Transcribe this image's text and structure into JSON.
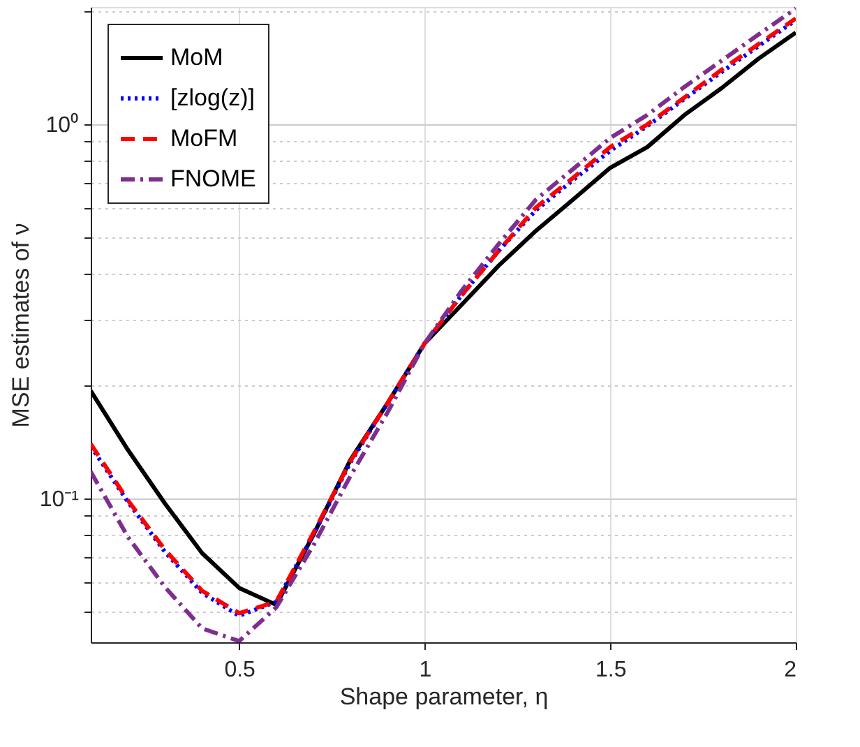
{
  "chart_data": {
    "type": "line",
    "xlabel": "Shape parameter, η",
    "ylabel": "MSE estimates of ν",
    "x": [
      0.1,
      0.2,
      0.3,
      0.4,
      0.5,
      0.6,
      0.7,
      0.8,
      0.9,
      1.0,
      1.1,
      1.2,
      1.3,
      1.4,
      1.5,
      1.6,
      1.7,
      1.8,
      1.9,
      2.0
    ],
    "series": [
      {
        "name": "MoM",
        "color": "#000000",
        "line_style": "solid",
        "values": [
          0.194,
          0.135,
          0.097,
          0.0715,
          0.0577,
          0.052,
          0.08,
          0.127,
          0.18,
          0.26,
          0.33,
          0.42,
          0.52,
          0.63,
          0.766,
          0.87,
          1.06,
          1.25,
          1.5,
          1.76
        ]
      },
      {
        "name": "[zlog(z)]",
        "color": "#0000ff",
        "line_style": "dotted",
        "values": [
          0.138,
          0.098,
          0.072,
          0.056,
          0.0486,
          0.053,
          0.08,
          0.125,
          0.18,
          0.26,
          0.35,
          0.46,
          0.59,
          0.71,
          0.85,
          0.99,
          1.17,
          1.38,
          1.62,
          1.9
        ]
      },
      {
        "name": "MoFM",
        "color": "#ff0000",
        "line_style": "dashed",
        "values": [
          0.14,
          0.099,
          0.073,
          0.0567,
          0.0494,
          0.053,
          0.081,
          0.126,
          0.18,
          0.26,
          0.35,
          0.46,
          0.6,
          0.72,
          0.87,
          1.0,
          1.18,
          1.4,
          1.64,
          1.92
        ]
      },
      {
        "name": "FNOME",
        "color": "#7e2f8e",
        "line_style": "dashdot",
        "values": [
          0.118,
          0.079,
          0.058,
          0.045,
          0.0416,
          0.0512,
          0.075,
          0.115,
          0.17,
          0.26,
          0.36,
          0.48,
          0.63,
          0.76,
          0.92,
          1.06,
          1.26,
          1.48,
          1.74,
          2.04
        ]
      }
    ],
    "log": "y",
    "xlim": [
      0.1,
      2
    ],
    "ylim": [
      0.0413,
      2.06
    ],
    "xticks": [
      0.5,
      1,
      1.5,
      2
    ],
    "yticks": [
      {
        "value": 0.05,
        "label": null
      },
      {
        "value": 0.06,
        "label": null
      },
      {
        "value": 0.07,
        "label": null
      },
      {
        "value": 0.08,
        "label": null
      },
      {
        "value": 0.09,
        "label": null
      },
      {
        "value": 0.1,
        "label": "10⁻¹"
      },
      {
        "value": 0.2,
        "label": null
      },
      {
        "value": 0.3,
        "label": null
      },
      {
        "value": 0.4,
        "label": null
      },
      {
        "value": 0.5,
        "label": null
      },
      {
        "value": 0.6,
        "label": null
      },
      {
        "value": 0.7,
        "label": null
      },
      {
        "value": 0.8,
        "label": null
      },
      {
        "value": 0.9,
        "label": null
      },
      {
        "value": 1,
        "label": "10⁰"
      },
      {
        "value": 2,
        "label": null
      }
    ],
    "grid": true,
    "legend": "top left"
  }
}
